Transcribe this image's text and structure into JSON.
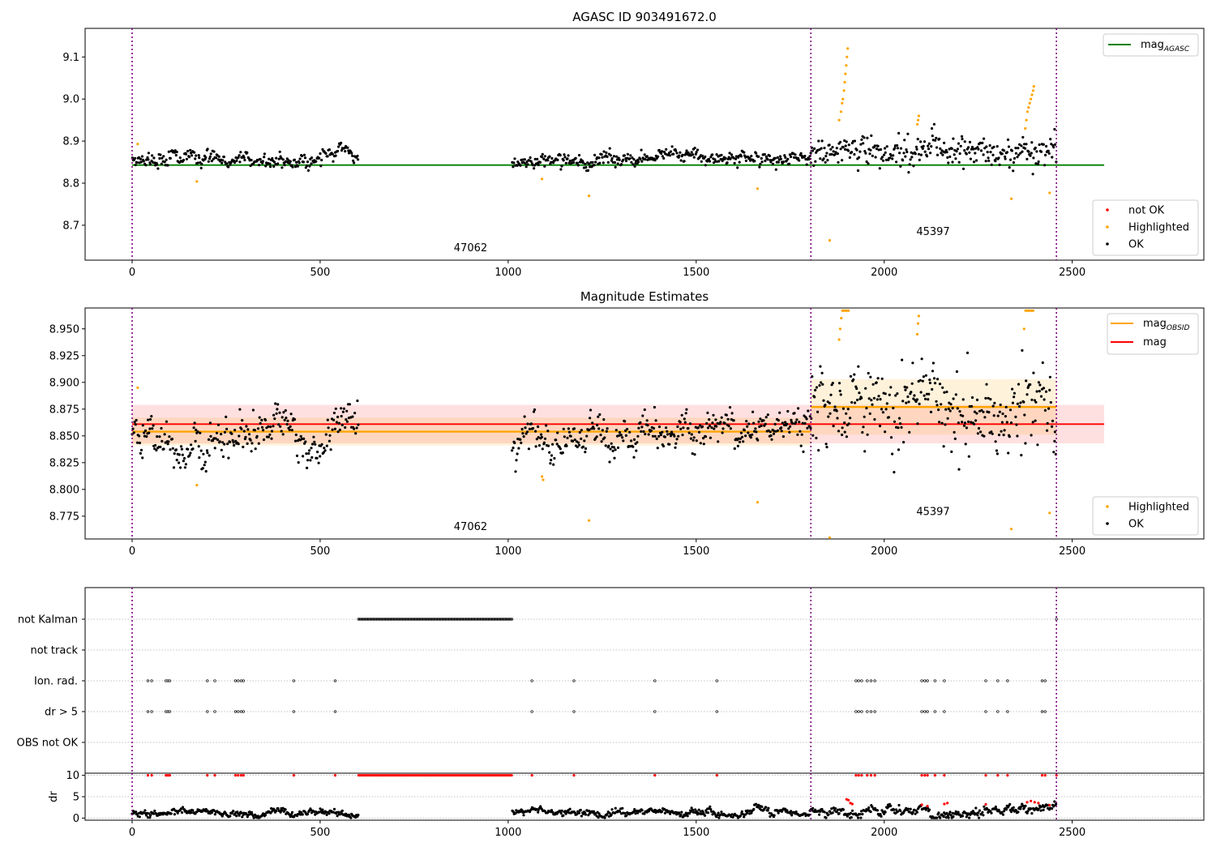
{
  "chart_data": [
    {
      "type": "scatter",
      "title": "AGASC ID 903491672.0",
      "xlim": [
        -125,
        2850
      ],
      "ylim": [
        8.617,
        9.168
      ],
      "xticks": [
        0,
        500,
        1000,
        1500,
        2000,
        2500
      ],
      "yticks": [
        8.7,
        8.8,
        8.9,
        9.0,
        9.1
      ],
      "ytick_labels": [
        "8.7",
        "8.8",
        "8.9",
        "9.0",
        "9.1"
      ],
      "vlines": [
        0,
        1805,
        2458
      ],
      "hline": {
        "name": "mag_AGASC",
        "value": 8.843,
        "x": [
          0,
          2585
        ],
        "color": "#008000"
      },
      "obsid_labels": [
        {
          "text": "47062",
          "x": 900,
          "y": 8.638
        },
        {
          "text": "45397",
          "x": 2130,
          "y": 8.677
        }
      ],
      "segments": [
        {
          "x0": 0,
          "x1": 602,
          "base": 8.855,
          "amp": 0.012,
          "noise": 0.007
        },
        {
          "x0": 1010,
          "x1": 1230,
          "base": 8.845,
          "amp": 0.01,
          "noise": 0.006
        },
        {
          "x0": 1230,
          "x1": 1805,
          "base": 8.858,
          "amp": 0.008,
          "noise": 0.007
        },
        {
          "x0": 1805,
          "x1": 2458,
          "base": 8.877,
          "amp": 0.012,
          "noise": 0.016
        }
      ],
      "highlighted_points": [
        [
          15,
          8.893
        ],
        [
          172,
          8.804
        ],
        [
          1090,
          8.81
        ],
        [
          1215,
          8.77
        ],
        [
          1663,
          8.787
        ],
        [
          1855,
          8.664
        ],
        [
          2338,
          8.763
        ],
        [
          2440,
          8.777
        ],
        [
          1880,
          8.95
        ],
        [
          1885,
          8.97
        ],
        [
          1888,
          8.99
        ],
        [
          1890,
          9.0
        ],
        [
          1893,
          9.02
        ],
        [
          1895,
          9.04
        ],
        [
          1897,
          9.06
        ],
        [
          1899,
          9.08
        ],
        [
          1901,
          9.1
        ],
        [
          1903,
          9.12
        ],
        [
          2088,
          8.94
        ],
        [
          2090,
          8.95
        ],
        [
          2092,
          8.96
        ],
        [
          2375,
          8.93
        ],
        [
          2378,
          8.95
        ],
        [
          2381,
          8.97
        ],
        [
          2384,
          8.98
        ],
        [
          2387,
          8.99
        ],
        [
          2390,
          9.0
        ],
        [
          2393,
          9.01
        ],
        [
          2396,
          9.02
        ],
        [
          2398,
          9.03
        ]
      ],
      "legend": {
        "lines": [
          {
            "name": "mag",
            "sub": "AGASC",
            "color": "#008000"
          }
        ],
        "points": [
          {
            "name": "not OK",
            "color": "#ff0000"
          },
          {
            "name": "Highlighted",
            "color": "#ffa500"
          },
          {
            "name": "OK",
            "color": "#000000"
          }
        ]
      }
    },
    {
      "type": "scatter",
      "title": "Magnitude Estimates",
      "xlim": [
        -125,
        2850
      ],
      "ylim": [
        8.7537,
        8.9695
      ],
      "xticks": [
        0,
        500,
        1000,
        1500,
        2000,
        2500
      ],
      "yticks": [
        8.775,
        8.8,
        8.825,
        8.85,
        8.875,
        8.9,
        8.925,
        8.95
      ],
      "ytick_labels": [
        "8.775",
        "8.800",
        "8.825",
        "8.850",
        "8.875",
        "8.900",
        "8.925",
        "8.950"
      ],
      "vlines": [
        0,
        1805,
        2458
      ],
      "mag": {
        "name": "mag",
        "value": 8.861,
        "band": [
          8.843,
          8.879
        ],
        "x": [
          0,
          2585
        ],
        "color": "#ff0000"
      },
      "mag_obsid": [
        {
          "x": [
            0,
            1805
          ],
          "value": 8.854,
          "band": [
            8.841,
            8.867
          ]
        },
        {
          "x": [
            1805,
            2458
          ],
          "value": 8.877,
          "band": [
            8.851,
            8.903
          ]
        }
      ],
      "obsid_labels": [
        {
          "text": "47062",
          "x": 900,
          "y": 8.762
        },
        {
          "text": "45397",
          "x": 2130,
          "y": 8.776
        }
      ],
      "segments": [
        {
          "x0": 0,
          "x1": 602,
          "base": 8.853,
          "amp": 0.014,
          "noise": 0.007
        },
        {
          "x0": 1010,
          "x1": 1230,
          "base": 8.843,
          "amp": 0.013,
          "noise": 0.006
        },
        {
          "x0": 1230,
          "x1": 1805,
          "base": 8.857,
          "amp": 0.009,
          "noise": 0.007
        },
        {
          "x0": 1805,
          "x1": 2458,
          "base": 8.877,
          "amp": 0.014,
          "noise": 0.017
        }
      ],
      "highlighted_points": [
        [
          15,
          8.895
        ],
        [
          172,
          8.804
        ],
        [
          1090,
          8.812
        ],
        [
          1093,
          8.809
        ],
        [
          1215,
          8.771
        ],
        [
          1663,
          8.788
        ],
        [
          1855,
          8.755
        ],
        [
          2338,
          8.763
        ],
        [
          2440,
          8.778
        ],
        [
          1880,
          8.94
        ],
        [
          1883,
          8.95
        ],
        [
          1886,
          8.96
        ],
        [
          1889,
          8.967
        ],
        [
          1893,
          8.967
        ],
        [
          1897,
          8.967
        ],
        [
          1901,
          8.967
        ],
        [
          1905,
          8.967
        ],
        [
          2088,
          8.945
        ],
        [
          2090,
          8.955
        ],
        [
          2092,
          8.962
        ],
        [
          2372,
          8.95
        ],
        [
          2376,
          8.967
        ],
        [
          2380,
          8.967
        ],
        [
          2384,
          8.967
        ],
        [
          2388,
          8.967
        ],
        [
          2392,
          8.967
        ],
        [
          2396,
          8.967
        ]
      ],
      "legend": {
        "lines": [
          {
            "name": "mag",
            "sub": "OBSID",
            "color": "#ffa500"
          },
          {
            "name": "mag",
            "sub": "",
            "color": "#ff0000"
          }
        ],
        "points": [
          {
            "name": "Highlighted",
            "color": "#ffa500"
          },
          {
            "name": "OK",
            "color": "#000000"
          }
        ]
      }
    },
    {
      "type": "scatter",
      "xlim": [
        -125,
        2850
      ],
      "vlines": [
        0,
        1805,
        2458
      ],
      "flag_rows": [
        "not Kalman",
        "not track",
        "Ion. rad.",
        "dr > 5",
        "OBS not OK"
      ],
      "flags": {
        "not Kalman": {
          "ranges": [
            [
              602,
              1010
            ]
          ],
          "points": [
            2458
          ]
        },
        "not track": {
          "ranges": [],
          "points": []
        },
        "Ion. rad.": {
          "ranges": [],
          "points": [
            42,
            52,
            90,
            95,
            100,
            200,
            220,
            275,
            282,
            290,
            296,
            430,
            540,
            1063,
            1175,
            1390,
            1555,
            1925,
            1932,
            1940,
            1955,
            1965,
            1975,
            2100,
            2108,
            2115,
            2135,
            2160,
            2270,
            2302,
            2328,
            2420,
            2428
          ]
        },
        "dr > 5": {
          "ranges": [],
          "points": [
            42,
            52,
            90,
            95,
            100,
            200,
            220,
            275,
            282,
            290,
            296,
            430,
            540,
            1063,
            1175,
            1390,
            1555,
            1925,
            1932,
            1940,
            1955,
            1965,
            1975,
            2100,
            2108,
            2115,
            2135,
            2160,
            2270,
            2302,
            2328,
            2420,
            2428
          ]
        },
        "OBS not OK": {
          "ranges": [],
          "points": []
        }
      }
    },
    {
      "type": "scatter",
      "ylabel": "dr",
      "xlim": [
        -125,
        2850
      ],
      "ylim": [
        -0.5,
        10.5
      ],
      "xticks": [
        0,
        500,
        1000,
        1500,
        2000,
        2500
      ],
      "yticks": [
        0,
        5,
        10
      ],
      "ytick_labels": [
        "0",
        "5",
        "10"
      ],
      "vlines": [
        0,
        1805,
        2458
      ],
      "segments": [
        {
          "x0": 0,
          "x1": 602,
          "base": 1.2,
          "amp": 0.5,
          "noise": 0.3
        },
        {
          "x0": 1010,
          "x1": 1805,
          "base": 1.3,
          "amp": 0.6,
          "noise": 0.3
        },
        {
          "x0": 1805,
          "x1": 2458,
          "base": 1.6,
          "amp": 0.8,
          "noise": 0.4
        }
      ],
      "red_ranges": [
        [
          602,
          1010
        ]
      ],
      "red_points": [
        [
          42,
          10
        ],
        [
          52,
          10
        ],
        [
          90,
          10
        ],
        [
          95,
          10
        ],
        [
          100,
          10
        ],
        [
          200,
          10
        ],
        [
          220,
          10
        ],
        [
          275,
          10
        ],
        [
          282,
          10
        ],
        [
          290,
          10
        ],
        [
          296,
          10
        ],
        [
          430,
          10
        ],
        [
          540,
          10
        ],
        [
          1063,
          10
        ],
        [
          1175,
          10
        ],
        [
          1390,
          10
        ],
        [
          1555,
          10
        ],
        [
          1925,
          10
        ],
        [
          1932,
          10
        ],
        [
          1940,
          10
        ],
        [
          1955,
          10
        ],
        [
          1965,
          10
        ],
        [
          1975,
          10
        ],
        [
          2100,
          10
        ],
        [
          2108,
          10
        ],
        [
          2115,
          10
        ],
        [
          2135,
          10
        ],
        [
          2160,
          10
        ],
        [
          2270,
          10
        ],
        [
          2302,
          10
        ],
        [
          2328,
          10
        ],
        [
          2420,
          10
        ],
        [
          2428,
          10
        ],
        [
          2458,
          10
        ],
        [
          1900,
          4.4
        ],
        [
          1905,
          4.2
        ],
        [
          1910,
          3.5
        ],
        [
          1915,
          3.3
        ],
        [
          2100,
          3.1
        ],
        [
          2115,
          2.8
        ],
        [
          2160,
          3.3
        ],
        [
          2168,
          3.5
        ],
        [
          2270,
          3.2
        ],
        [
          2380,
          3.7
        ],
        [
          2390,
          4.0
        ],
        [
          2400,
          3.7
        ],
        [
          2410,
          3.5
        ],
        [
          2440,
          3.0
        ]
      ]
    }
  ]
}
